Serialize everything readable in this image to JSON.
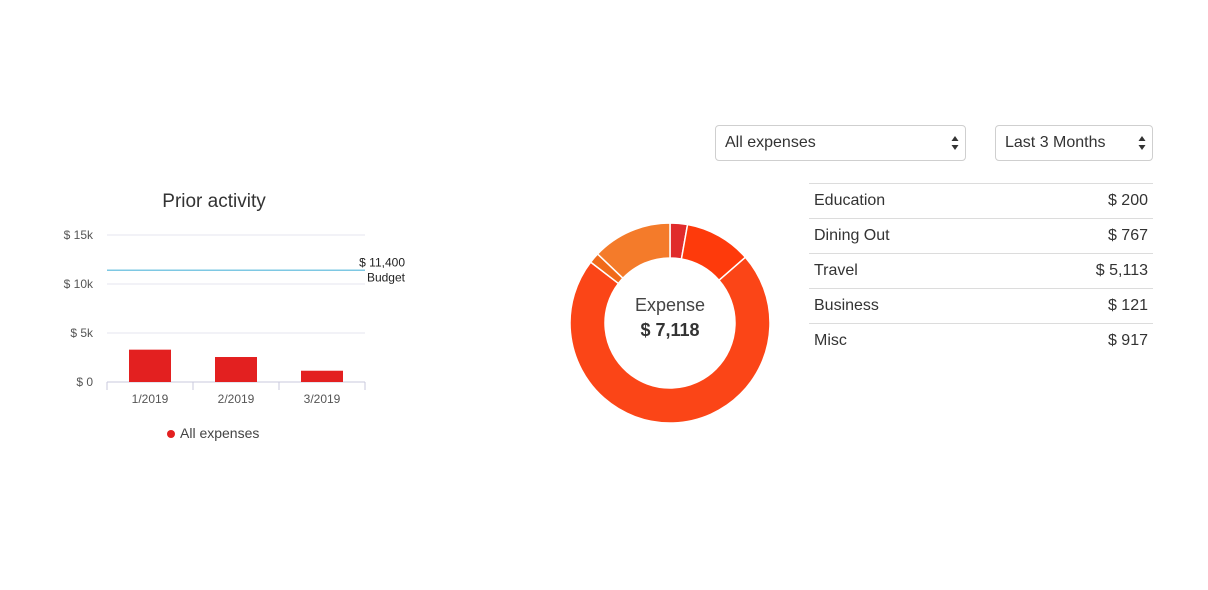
{
  "filters": {
    "category_select": {
      "value": "All expenses"
    },
    "range_select": {
      "value": "Last 3 Months"
    }
  },
  "prior_activity": {
    "title": "Prior activity",
    "legend": "All expenses",
    "budget_value": "$ 11,400",
    "budget_label": "Budget"
  },
  "expense": {
    "label": "Expense",
    "total": "$ 7,118"
  },
  "categories": [
    {
      "name": "Education",
      "amount": "$ 200",
      "color": "#e02b2b"
    },
    {
      "name": "Dining Out",
      "amount": "$ 767",
      "color": "#fe3a0b"
    },
    {
      "name": "Travel",
      "amount": "$ 5,113",
      "color": "#fb4517"
    },
    {
      "name": "Business",
      "amount": "$ 121",
      "color": "#f06a1a"
    },
    {
      "name": "Misc",
      "amount": "$ 917",
      "color": "#f47b2a"
    }
  ],
  "colors": {
    "bar": "#e32020",
    "budget_line": "#7ec8e3",
    "grid": "#e6e6ef",
    "legend_dot": "#e32020"
  },
  "chart_data": [
    {
      "type": "bar",
      "title": "Prior activity",
      "categories": [
        "1/2019",
        "2/2019",
        "3/2019"
      ],
      "series": [
        {
          "name": "All expenses",
          "values": [
            3300,
            2550,
            1150
          ]
        }
      ],
      "ylim": [
        0,
        15000
      ],
      "yticks": [
        "$ 0",
        "$ 5k",
        "$ 10k",
        "$ 15k"
      ],
      "ytick_values": [
        0,
        5000,
        10000,
        15000
      ],
      "budget": 11400,
      "grid": true,
      "legend_position": "bottom"
    },
    {
      "type": "pie",
      "donut": true,
      "labels": [
        "Education",
        "Dining Out",
        "Travel",
        "Business",
        "Misc"
      ],
      "values": [
        200,
        767,
        5113,
        121,
        917
      ]
    }
  ]
}
